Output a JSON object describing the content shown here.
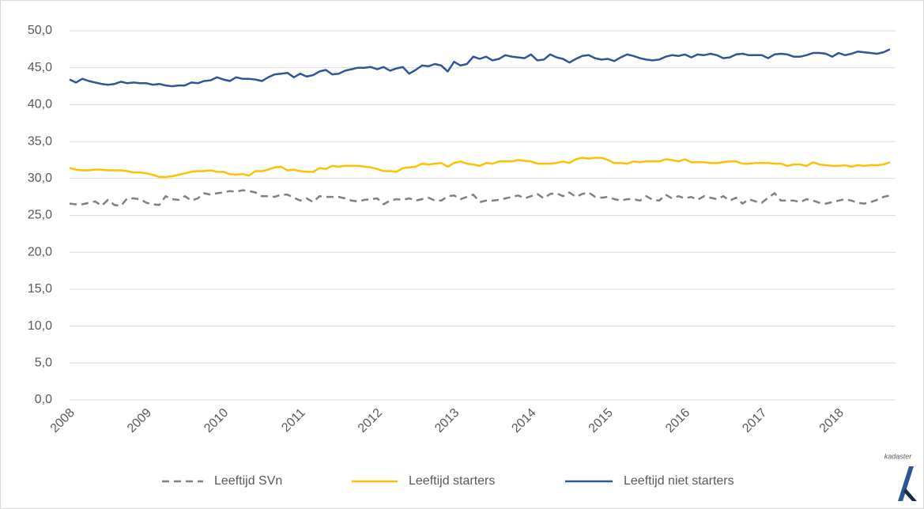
{
  "chart_data": {
    "type": "line",
    "categories": [
      "2008",
      null,
      null,
      null,
      null,
      null,
      null,
      null,
      null,
      null,
      null,
      null,
      "2009",
      null,
      null,
      null,
      null,
      null,
      null,
      null,
      null,
      null,
      null,
      null,
      "2010",
      null,
      null,
      null,
      null,
      null,
      null,
      null,
      null,
      null,
      null,
      null,
      "2011",
      null,
      null,
      null,
      null,
      null,
      null,
      null,
      null,
      null,
      null,
      null,
      "2012",
      null,
      null,
      null,
      null,
      null,
      null,
      null,
      null,
      null,
      null,
      null,
      "2013",
      null,
      null,
      null,
      null,
      null,
      null,
      null,
      null,
      null,
      null,
      null,
      "2014",
      null,
      null,
      null,
      null,
      null,
      null,
      null,
      null,
      null,
      null,
      null,
      "2015",
      null,
      null,
      null,
      null,
      null,
      null,
      null,
      null,
      null,
      null,
      null,
      "2016",
      null,
      null,
      null,
      null,
      null,
      null,
      null,
      null,
      null,
      null,
      null,
      "2017",
      null,
      null,
      null,
      null,
      null,
      null,
      null,
      null,
      null,
      null,
      null,
      "2018",
      null,
      null,
      null,
      null,
      null,
      null,
      null,
      null
    ],
    "series": [
      {
        "name": "Leeftijd SVn",
        "color": "#808080",
        "dashed": true,
        "values": [
          26.6,
          26.5,
          26.5,
          26.7,
          26.9,
          26.3,
          27.1,
          26.4,
          26.3,
          27.3,
          27.3,
          27.2,
          26.7,
          26.5,
          26.4,
          27.6,
          27.2,
          27.1,
          27.6,
          27.0,
          27.3,
          28.0,
          27.8,
          28.0,
          28.1,
          28.3,
          28.2,
          28.4,
          28.3,
          28.1,
          27.6,
          27.6,
          27.5,
          27.8,
          27.8,
          27.4,
          27.0,
          27.3,
          26.8,
          27.6,
          27.5,
          27.5,
          27.5,
          27.3,
          27.0,
          26.9,
          27.1,
          27.2,
          27.3,
          26.5,
          27.0,
          27.2,
          27.1,
          27.3,
          27.0,
          27.2,
          27.4,
          27.0,
          27.0,
          27.6,
          27.7,
          27.2,
          27.5,
          27.8,
          26.8,
          27.0,
          27.0,
          27.1,
          27.3,
          27.5,
          27.7,
          27.3,
          27.6,
          27.9,
          27.3,
          27.9,
          28.0,
          27.6,
          28.1,
          27.5,
          27.9,
          28.1,
          27.5,
          27.4,
          27.5,
          27.2,
          27.0,
          27.2,
          27.2,
          27.0,
          27.6,
          27.1,
          27.0,
          27.8,
          27.3,
          27.6,
          27.3,
          27.5,
          27.1,
          27.6,
          27.4,
          27.2,
          27.6,
          27.0,
          27.4,
          26.6,
          27.2,
          26.9,
          26.7,
          27.4,
          28.0,
          27.0,
          27.0,
          27.0,
          26.8,
          27.2,
          27.0,
          26.7,
          26.6,
          26.8,
          27.0,
          27.2,
          27.0,
          26.7,
          26.6,
          26.8,
          27.1,
          27.5,
          27.7
        ]
      },
      {
        "name": "Leeftijd starters",
        "color": "#ffc000",
        "dashed": false,
        "values": [
          31.4,
          31.2,
          31.1,
          31.1,
          31.2,
          31.2,
          31.1,
          31.1,
          31.1,
          31.0,
          30.8,
          30.8,
          30.7,
          30.5,
          30.2,
          30.2,
          30.3,
          30.5,
          30.7,
          30.9,
          31.0,
          31.0,
          31.1,
          30.9,
          30.9,
          30.6,
          30.5,
          30.6,
          30.4,
          31.0,
          31.0,
          31.2,
          31.5,
          31.6,
          31.1,
          31.2,
          31.0,
          30.9,
          30.9,
          31.4,
          31.3,
          31.7,
          31.6,
          31.7,
          31.7,
          31.7,
          31.6,
          31.5,
          31.3,
          31.0,
          31.0,
          30.9,
          31.4,
          31.5,
          31.6,
          32.0,
          31.9,
          32.0,
          32.1,
          31.6,
          32.1,
          32.3,
          32.0,
          31.9,
          31.7,
          32.1,
          32.0,
          32.3,
          32.3,
          32.3,
          32.5,
          32.4,
          32.3,
          32.0,
          32.0,
          32.0,
          32.1,
          32.3,
          32.1,
          32.6,
          32.8,
          32.7,
          32.8,
          32.8,
          32.5,
          32.1,
          32.1,
          32.0,
          32.3,
          32.2,
          32.3,
          32.3,
          32.3,
          32.6,
          32.5,
          32.3,
          32.6,
          32.2,
          32.2,
          32.2,
          32.1,
          32.1,
          32.2,
          32.3,
          32.3,
          32.0,
          32.0,
          32.1,
          32.1,
          32.1,
          32.0,
          32.0,
          31.7,
          31.9,
          31.9,
          31.7,
          32.2,
          31.9,
          31.8,
          31.7,
          31.7,
          31.8,
          31.6,
          31.8,
          31.7,
          31.8,
          31.8,
          31.9,
          32.2
        ]
      },
      {
        "name": "Leeftijd niet starters",
        "color": "#2f5597",
        "dashed": false,
        "values": [
          43.4,
          43.0,
          43.5,
          43.2,
          43.0,
          42.8,
          42.7,
          42.8,
          43.1,
          42.9,
          43.0,
          42.9,
          42.9,
          42.7,
          42.8,
          42.6,
          42.5,
          42.6,
          42.6,
          43.0,
          42.9,
          43.2,
          43.3,
          43.7,
          43.4,
          43.2,
          43.7,
          43.5,
          43.5,
          43.4,
          43.2,
          43.7,
          44.1,
          44.2,
          44.3,
          43.7,
          44.2,
          43.8,
          44.0,
          44.5,
          44.7,
          44.1,
          44.2,
          44.6,
          44.8,
          45.0,
          45.0,
          45.1,
          44.8,
          45.1,
          44.6,
          44.9,
          45.1,
          44.2,
          44.7,
          45.3,
          45.2,
          45.5,
          45.3,
          44.5,
          45.8,
          45.3,
          45.5,
          46.5,
          46.2,
          46.5,
          46.0,
          46.2,
          46.7,
          46.5,
          46.4,
          46.3,
          46.8,
          46.0,
          46.1,
          46.8,
          46.4,
          46.2,
          45.7,
          46.2,
          46.6,
          46.7,
          46.3,
          46.1,
          46.2,
          45.9,
          46.4,
          46.8,
          46.6,
          46.3,
          46.1,
          46.0,
          46.1,
          46.5,
          46.7,
          46.6,
          46.8,
          46.4,
          46.8,
          46.7,
          46.9,
          46.7,
          46.3,
          46.4,
          46.8,
          46.9,
          46.7,
          46.7,
          46.7,
          46.3,
          46.8,
          46.9,
          46.8,
          46.5,
          46.5,
          46.7,
          47.0,
          47.0,
          46.9,
          46.5,
          47.0,
          46.7,
          46.9,
          47.2,
          47.1,
          47.0,
          46.9,
          47.1,
          47.5
        ]
      }
    ],
    "ylim": [
      0,
      50
    ],
    "yticks": [
      {
        "value": 0,
        "label": "0,0"
      },
      {
        "value": 5,
        "label": "5,0"
      },
      {
        "value": 10,
        "label": "10,0"
      },
      {
        "value": 15,
        "label": "15,0"
      },
      {
        "value": 20,
        "label": "20,0"
      },
      {
        "value": 25,
        "label": "25,0"
      },
      {
        "value": 30,
        "label": "30,0"
      },
      {
        "value": 35,
        "label": "35,0"
      },
      {
        "value": 40,
        "label": "40,0"
      },
      {
        "value": 45,
        "label": "45,0"
      },
      {
        "value": 50,
        "label": "50,0"
      }
    ],
    "grid": true,
    "legend": "bottom",
    "watermark": "kadaster"
  }
}
